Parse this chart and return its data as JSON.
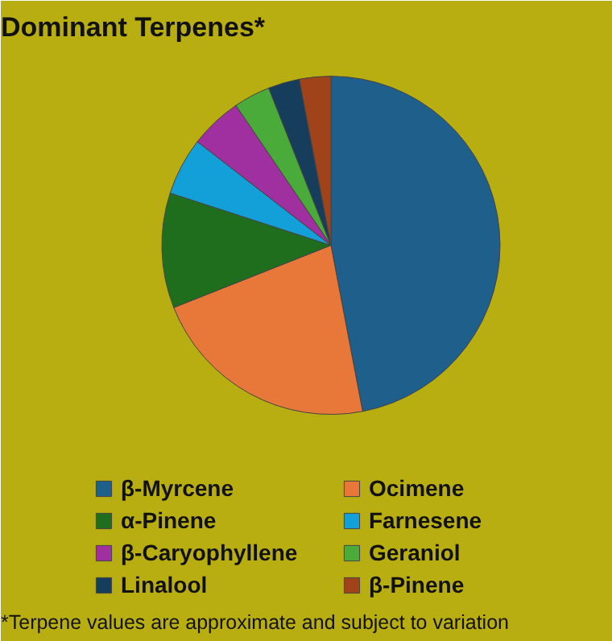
{
  "chart_data": {
    "type": "pie",
    "title": "Dominant Terpenes*",
    "categories": [
      "β-Myrcene",
      "Ocimene",
      "α-Pinene",
      "Farnesene",
      "β-Caryophyllene",
      "Geraniol",
      "Linalool",
      "β-Pinene"
    ],
    "values": [
      47,
      22,
      11,
      5.5,
      5,
      3.5,
      3,
      3
    ],
    "colors": [
      "#1f5f8b",
      "#e8773a",
      "#1e6e1e",
      "#13a0d8",
      "#a0309f",
      "#4aaa3a",
      "#163e5c",
      "#a0421a"
    ],
    "legend": "bottom",
    "annotations": [
      "*Terpene values are approximate and subject to variation"
    ]
  }
}
